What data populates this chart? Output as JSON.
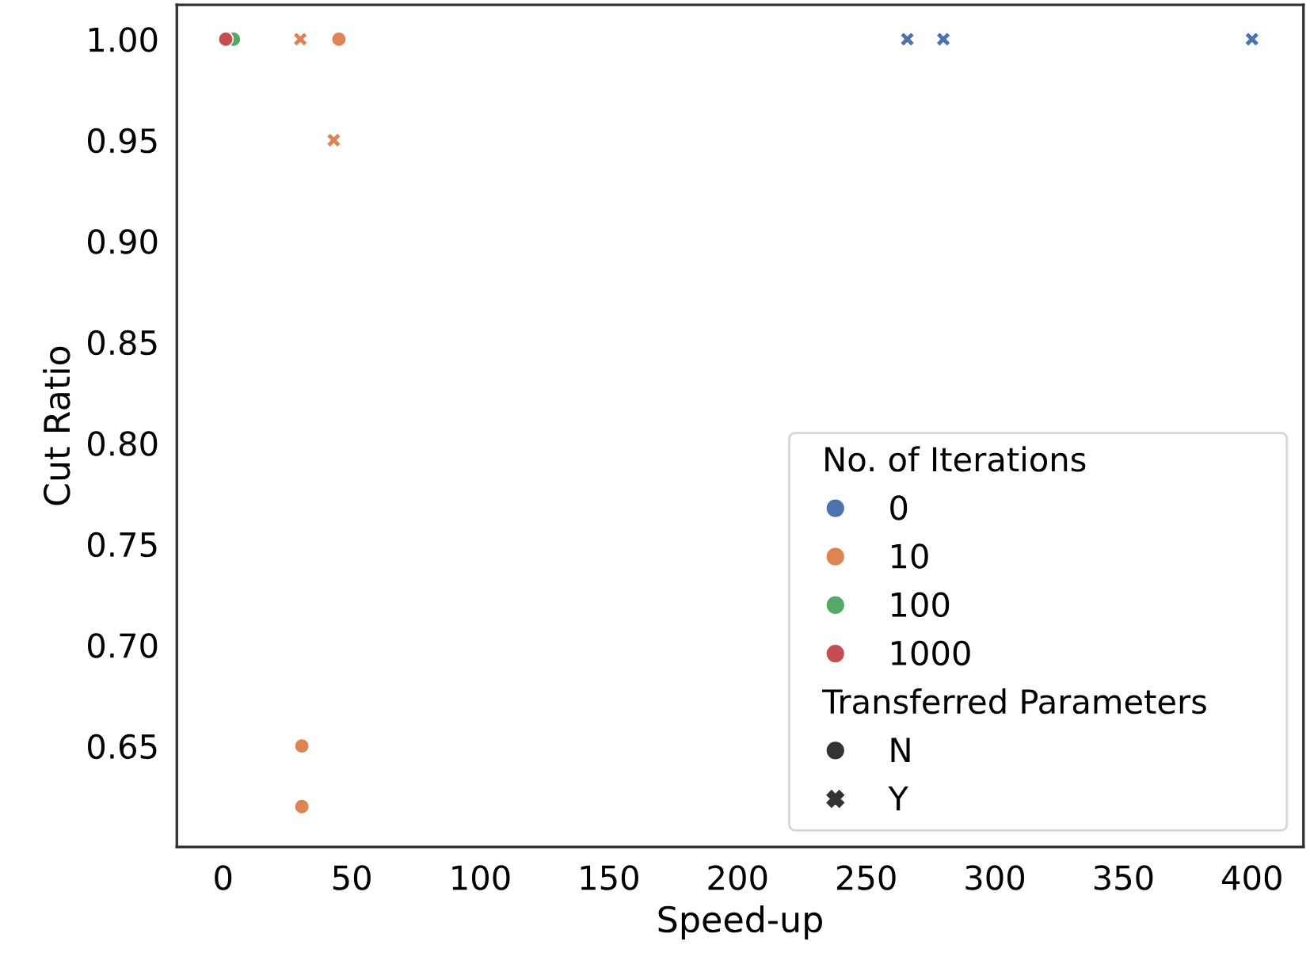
{
  "chart_data": {
    "type": "scatter",
    "xlabel": "Speed-up",
    "ylabel": "Cut Ratio",
    "xlim": [
      -18,
      420
    ],
    "ylim": [
      0.6,
      1.017
    ],
    "xticks": [
      0,
      50,
      100,
      150,
      200,
      250,
      300,
      350,
      400
    ],
    "yticks": [
      {
        "value": 0.65,
        "label": "0.65"
      },
      {
        "value": 0.7,
        "label": "0.70"
      },
      {
        "value": 0.75,
        "label": "0.75"
      },
      {
        "value": 0.8,
        "label": "0.80"
      },
      {
        "value": 0.85,
        "label": "0.85"
      },
      {
        "value": 0.9,
        "label": "0.90"
      },
      {
        "value": 0.95,
        "label": "0.95"
      },
      {
        "value": 1.0,
        "label": "1.00"
      }
    ],
    "grid": false,
    "legend": "bottom right",
    "legend_title": "No. of Iterations",
    "annotations": [
      "Transferred Parameters"
    ],
    "series": [
      {
        "name": "0",
        "color": "#4c72b0",
        "marker": "cross",
        "x": [
          266,
          280,
          400
        ],
        "values": [
          1.0,
          1.0,
          1.0
        ]
      },
      {
        "name": "10",
        "color": "#dd8452",
        "marker": "circle",
        "x": [
          45,
          30.6,
          30.6
        ],
        "values": [
          1.0,
          0.65,
          0.62
        ]
      },
      {
        "color": "#dd8452",
        "marker": "cross",
        "x": [
          30,
          43
        ],
        "values": [
          1.0,
          0.95
        ]
      },
      {
        "name": "100",
        "color": "#55a868",
        "marker": "circle",
        "x": [
          4
        ],
        "values": [
          1.0
        ]
      },
      {
        "name": "1000",
        "color": "#c44e52",
        "marker": "circle",
        "x": [
          1
        ],
        "values": [
          1.0
        ]
      },
      {
        "name": "N",
        "color": "#333333",
        "marker": "circle"
      },
      {
        "name": "Y",
        "color": "#333333",
        "marker": "cross"
      }
    ]
  }
}
